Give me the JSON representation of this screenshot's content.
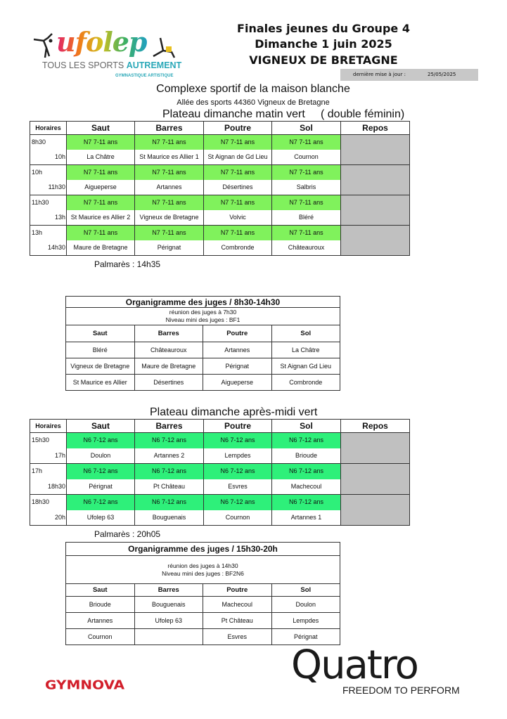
{
  "header": {
    "logo_text": "ufolep",
    "logo_tagline_1": "TOUS LES SPORTS",
    "logo_tagline_2": "AUTREMENT",
    "logo_sub": "GYMNASTIQUE ARTISTIQUE",
    "title_line1": "Finales jeunes du Groupe 4",
    "title_line2": "Dimanche 1 juin 2025",
    "title_line3": "VIGNEUX DE BRETAGNE",
    "update_label": "dernière mise à jour :",
    "update_date": "25/05/2025"
  },
  "venue": {
    "name": "Complexe sportif de la maison blanche",
    "address": "Allée des sports 44360 Vigneux de Bretagne"
  },
  "colors": {
    "green_morning": "#80f25c",
    "green_afternoon": "#2ef07a",
    "repos_gray": "#c0c0c0",
    "gymnova_red": "#d21f2b"
  },
  "morning": {
    "title": "Plateau dimanche matin vert     ( double féminin)",
    "headers": [
      "Horaires",
      "Saut",
      "Barres",
      "Poutre",
      "Sol",
      "Repos"
    ],
    "rotations": [
      {
        "start": "8h30",
        "end": "10h",
        "levels": [
          "N7 7-11 ans",
          "N7 7-11 ans",
          "N7 7-11 ans",
          "N7 7-11 ans"
        ],
        "clubs": [
          "La Châtre",
          "St Maurice es Allier 1",
          "St Aignan de Gd Lieu",
          "Cournon"
        ]
      },
      {
        "start": "10h",
        "end": "11h30",
        "levels": [
          "N7 7-11 ans",
          "N7 7-11 ans",
          "N7 7-11 ans",
          "N7 7-11 ans"
        ],
        "clubs": [
          "Aigueperse",
          "Artannes",
          "Désertines",
          "Salbris"
        ]
      },
      {
        "start": "11h30",
        "end": "13h",
        "levels": [
          "N7 7-11 ans",
          "N7 7-11 ans",
          "N7 7-11 ans",
          "N7 7-11 ans"
        ],
        "clubs": [
          "St Maurice es Allier 2",
          "Vigneux de Bretagne",
          "Volvic",
          "Bléré"
        ]
      },
      {
        "start": "13h",
        "end": "14h30",
        "levels": [
          "N7 7-11 ans",
          "N7 7-11 ans",
          "N7 7-11 ans",
          "N7 7-11 ans"
        ],
        "clubs": [
          "Maure de Bretagne",
          "Pérignat",
          "Combronde",
          "Châteauroux"
        ]
      }
    ],
    "palmares": "Palmarès : 14h35"
  },
  "judges_morning": {
    "title": "Organigramme des juges / 8h30-14h30",
    "info_1": "réunion des juges à 7h30",
    "info_2": "Niveau mini des juges : BF1",
    "headers": [
      "Saut",
      "Barres",
      "Poutre",
      "Sol"
    ],
    "rows": [
      [
        "Bléré",
        "Châteauroux",
        "Artannes",
        "La Châtre"
      ],
      [
        "Vigneux de Bretagne",
        "Maure de Bretagne",
        "Pérignat",
        "St Aignan Gd Lieu"
      ],
      [
        "St Maurice es Allier",
        "Désertines",
        "Aigueperse",
        "Combronde"
      ]
    ]
  },
  "afternoon": {
    "title": "Plateau dimanche après-midi vert",
    "headers": [
      "Horaires",
      "Saut",
      "Barres",
      "Poutre",
      "Sol",
      "Repos"
    ],
    "rotations": [
      {
        "start": "15h30",
        "end": "17h",
        "levels": [
          "N6 7-12 ans",
          "N6 7-12 ans",
          "N6 7-12 ans",
          "N6 7-12 ans"
        ],
        "clubs": [
          "Doulon",
          "Artannes 2",
          "Lempdes",
          "Brioude"
        ]
      },
      {
        "start": "17h",
        "end": "18h30",
        "levels": [
          "N6 7-12 ans",
          "N6 7-12 ans",
          "N6 7-12 ans",
          "N6 7-12 ans"
        ],
        "clubs": [
          "Pérignat",
          "Pt Château",
          "Esvres",
          "Machecoul"
        ]
      },
      {
        "start": "18h30",
        "end": "20h",
        "levels": [
          "N6 7-12 ans",
          "N6 7-12 ans",
          "N6 7-12 ans",
          "N6 7-12 ans"
        ],
        "clubs": [
          "Ufolep 63",
          "Bouguenais",
          "Cournon",
          "Artannes 1"
        ]
      }
    ],
    "palmares": "Palmarès : 20h05"
  },
  "judges_afternoon": {
    "title": "Organigramme des juges / 15h30-20h",
    "info_1": "réunion des juges à 14h30",
    "info_2": "Niveau mini des juges : BF2N6",
    "headers": [
      "Saut",
      "Barres",
      "Poutre",
      "Sol"
    ],
    "rows": [
      [
        "Brioude",
        "Bouguenais",
        "Machecoul",
        "Doulon"
      ],
      [
        "Artannes",
        "Ufolep 63",
        "Pt Château",
        "Lempdes"
      ],
      [
        "Cournon",
        "",
        "Esvres",
        "Pérignat"
      ]
    ]
  },
  "footer": {
    "gymnova_logo": "GYMNOVA",
    "quatro_logo": "Quatro",
    "quatro_tagline": "FREEDOM TO PERFORM"
  }
}
